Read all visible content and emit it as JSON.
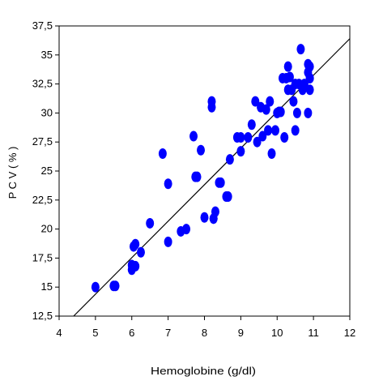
{
  "chart_data": {
    "type": "scatter",
    "title": "",
    "xlabel": "Hemoglobine (g/dl)",
    "ylabel": "P C V  ( % )",
    "xlim": [
      4,
      12
    ],
    "ylim": [
      12.5,
      37.5
    ],
    "x_ticks": [
      "4",
      "5",
      "6",
      "7",
      "8",
      "9",
      "10",
      "11",
      "12"
    ],
    "y_ticks": [
      "12,5",
      "15",
      "17,5",
      "20",
      "22,5",
      "25",
      "27,5",
      "30",
      "32,5",
      "35",
      "37,5"
    ],
    "grid": false,
    "legend": "none",
    "point_color": "#0000ff",
    "line_color": "#000000",
    "series": [
      {
        "x": [
          5.0,
          5.5,
          5.55,
          6.0,
          6.0,
          6.05,
          6.1,
          6.05,
          6.1,
          6.25,
          6.5,
          6.85,
          7.0,
          7.0,
          7.35,
          7.5,
          7.7,
          7.75,
          7.8,
          7.9,
          8.0,
          8.2,
          8.2,
          8.25,
          8.3,
          8.25,
          8.4,
          8.45,
          8.6,
          8.65,
          8.7,
          8.9,
          9.0,
          9.0,
          9.2,
          9.3,
          9.4,
          9.45,
          9.55,
          9.6,
          9.7,
          9.75,
          9.8,
          9.85,
          9.95,
          10.0,
          10.05,
          10.1,
          10.15,
          10.2,
          10.25,
          10.3,
          10.3,
          10.35,
          10.4,
          10.45,
          10.5,
          10.5,
          10.55,
          10.6,
          10.65,
          10.7,
          10.75,
          10.85,
          10.9,
          10.85,
          10.9,
          10.9,
          10.9,
          10.85
        ],
        "y": [
          15.0,
          15.1,
          15.1,
          16.5,
          16.9,
          18.5,
          18.7,
          16.8,
          16.8,
          18.0,
          20.5,
          26.5,
          18.9,
          23.9,
          19.8,
          20.0,
          28.0,
          24.5,
          24.5,
          26.8,
          21.0,
          31.0,
          30.5,
          20.9,
          21.5,
          20.9,
          24.0,
          24.0,
          22.8,
          22.8,
          26.0,
          27.9,
          27.9,
          26.7,
          27.9,
          29.0,
          31.0,
          27.5,
          30.5,
          28.0,
          30.3,
          28.5,
          31.0,
          26.5,
          28.5,
          30.0,
          30.1,
          30.1,
          33.0,
          27.9,
          33.0,
          34.0,
          32.0,
          33.1,
          32.0,
          31.0,
          32.5,
          28.5,
          30.0,
          32.5,
          35.5,
          32.0,
          32.5,
          30.0,
          33.0,
          33.5,
          32.0,
          33.0,
          34.0,
          34.2
        ]
      }
    ],
    "fit_line": {
      "x": [
        4.4,
        12.0
      ],
      "y": [
        12.5,
        36.4
      ]
    }
  }
}
